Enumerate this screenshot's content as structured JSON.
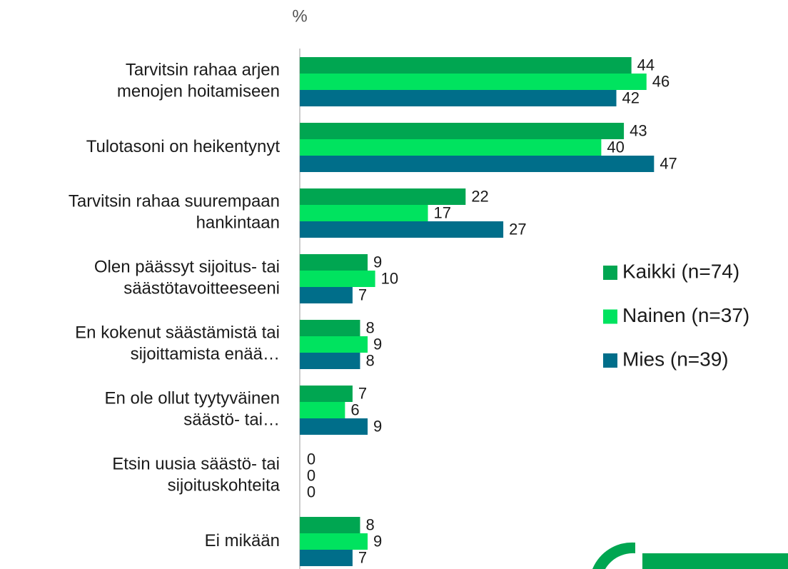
{
  "chart_data": {
    "type": "hbar",
    "x_label": "%",
    "categories": [
      "Tarvitsin rahaa arjen\nmenojen hoitamiseen",
      "Tulotasoni on heikentynyt",
      "Tarvitsin rahaa suurempaan\nhankintaan",
      "Olen päässyt sijoitus- tai\nsäästötavoitteeseeni",
      "En kokenut säästämistä tai\nsijoittamista enää…",
      "En ole ollut tyytyväinen\nsäästö- tai…",
      "Etsin uusia säästö- tai\nsijoituskohteita",
      "Ei mikään"
    ],
    "series": [
      {
        "name": "Kaikki (n=74)",
        "color": "#00a651",
        "values": [
          44,
          43,
          22,
          9,
          8,
          7,
          0,
          8
        ]
      },
      {
        "name": "Nainen (n=37)",
        "color": "#00e35f",
        "values": [
          46,
          40,
          17,
          10,
          9,
          6,
          0,
          9
        ]
      },
      {
        "name": "Mies (n=39)",
        "color": "#006e8a",
        "values": [
          42,
          47,
          27,
          7,
          8,
          9,
          0,
          7
        ]
      }
    ],
    "xlim": [
      0,
      65
    ]
  }
}
